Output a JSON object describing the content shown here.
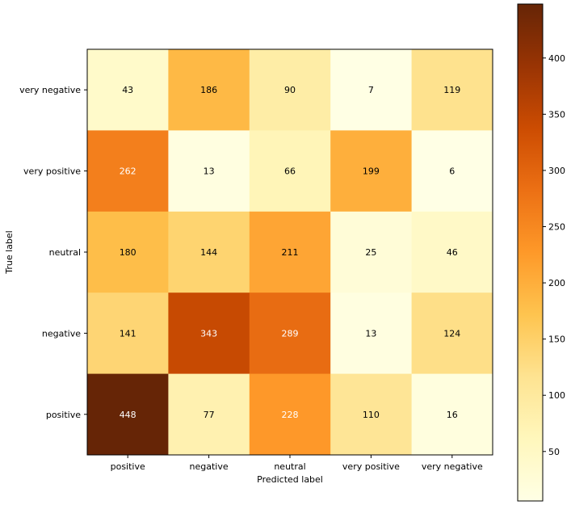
{
  "chart_data": {
    "type": "heatmap",
    "title": "",
    "xlabel": "Predicted label",
    "ylabel": "True label",
    "x_categories": [
      "positive",
      "negative",
      "neutral",
      "very positive",
      "very negative"
    ],
    "y_categories": [
      "very negative",
      "very positive",
      "neutral",
      "negative",
      "positive"
    ],
    "values": [
      [
        43,
        186,
        90,
        7,
        119
      ],
      [
        262,
        13,
        66,
        199,
        6
      ],
      [
        180,
        144,
        211,
        25,
        46
      ],
      [
        141,
        343,
        289,
        13,
        124
      ],
      [
        448,
        77,
        228,
        110,
        16
      ]
    ],
    "colormap": "YlOrBr",
    "vmin": 6,
    "vmax": 448,
    "colorbar_ticks": [
      "50",
      "100",
      "150",
      "200",
      "250",
      "300",
      "350",
      "400"
    ],
    "colorbar_tick_values": [
      50,
      100,
      150,
      200,
      250,
      300,
      350,
      400
    ],
    "light_text_color": "#ffffff",
    "dark_text_color": "#000000"
  }
}
